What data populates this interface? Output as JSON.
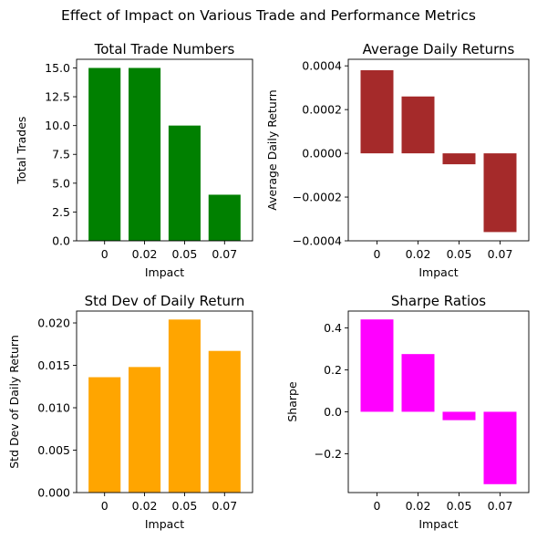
{
  "figure": {
    "title": "Effect of Impact on Various Trade and Performance Metrics"
  },
  "chart_data": [
    {
      "type": "bar",
      "title": "Total Trade Numbers",
      "xlabel": "Impact",
      "ylabel": "Total Trades",
      "categories": [
        "0",
        "0.02",
        "0.05",
        "0.07"
      ],
      "values": [
        15,
        15,
        10,
        4
      ],
      "color": "#008000",
      "ylim": [
        0,
        15.75
      ],
      "yticks": [
        0,
        2.5,
        5,
        7.5,
        10,
        12.5,
        15
      ],
      "ytick_labels": [
        "0.0",
        "2.5",
        "5.0",
        "7.5",
        "10.0",
        "12.5",
        "15.0"
      ],
      "grid": false
    },
    {
      "type": "bar",
      "title": "Average Daily Returns",
      "xlabel": "Impact",
      "ylabel": "Average Daily Return",
      "categories": [
        "0",
        "0.02",
        "0.05",
        "0.07"
      ],
      "values": [
        0.00038,
        0.00026,
        -5e-05,
        -0.00036
      ],
      "color": "#a52a2a",
      "ylim": [
        -0.0004,
        0.00043
      ],
      "yticks": [
        -0.0004,
        -0.0002,
        0,
        0.0002,
        0.0004
      ],
      "ytick_labels": [
        "−0.0004",
        "−0.0002",
        "0.0000",
        "0.0002",
        "0.0004"
      ],
      "grid": false
    },
    {
      "type": "bar",
      "title": "Std Dev of Daily Return",
      "xlabel": "Impact",
      "ylabel": "Std Dev of Daily Return",
      "categories": [
        "0",
        "0.02",
        "0.05",
        "0.07"
      ],
      "values": [
        0.0136,
        0.0148,
        0.0204,
        0.0167
      ],
      "color": "#ffa500",
      "ylim": [
        0,
        0.0214
      ],
      "yticks": [
        0,
        0.005,
        0.01,
        0.015,
        0.02
      ],
      "ytick_labels": [
        "0.000",
        "0.005",
        "0.010",
        "0.015",
        "0.020"
      ],
      "grid": false
    },
    {
      "type": "bar",
      "title": "Sharpe Ratios",
      "xlabel": "Impact",
      "ylabel": "Sharpe",
      "categories": [
        "0",
        "0.02",
        "0.05",
        "0.07"
      ],
      "values": [
        0.44,
        0.275,
        -0.04,
        -0.345
      ],
      "color": "#ff00ff",
      "ylim": [
        -0.385,
        0.48
      ],
      "yticks": [
        -0.2,
        0,
        0.2,
        0.4
      ],
      "ytick_labels": [
        "−0.2",
        "0.0",
        "0.2",
        "0.4"
      ],
      "grid": false
    }
  ]
}
